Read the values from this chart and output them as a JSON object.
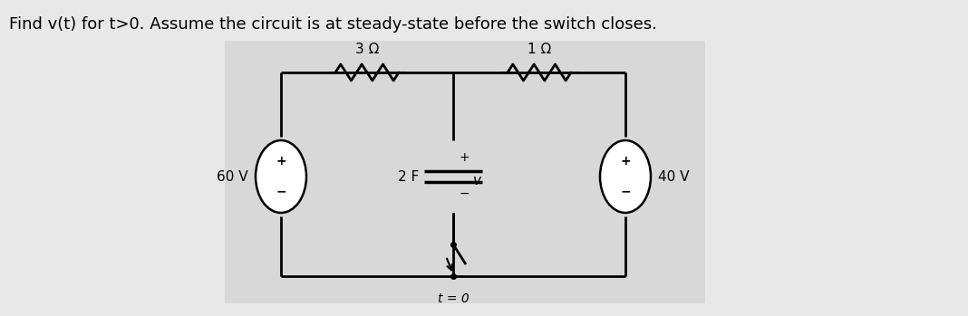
{
  "title": "Find v(t) for t>0. Assume the circuit is at steady-state before the switch closes.",
  "title_fontsize": 13,
  "panel_bg": "#d8d8d8",
  "outer_bg": "#e8e8e8",
  "resistor_3_label": "3 Ω",
  "resistor_1_label": "1 Ω",
  "capacitor_label": "2 F",
  "v_label": "v",
  "source_left_label": "60 V",
  "source_right_label": "40 V",
  "switch_label": "t = 0",
  "plus": "+",
  "minus": "−"
}
